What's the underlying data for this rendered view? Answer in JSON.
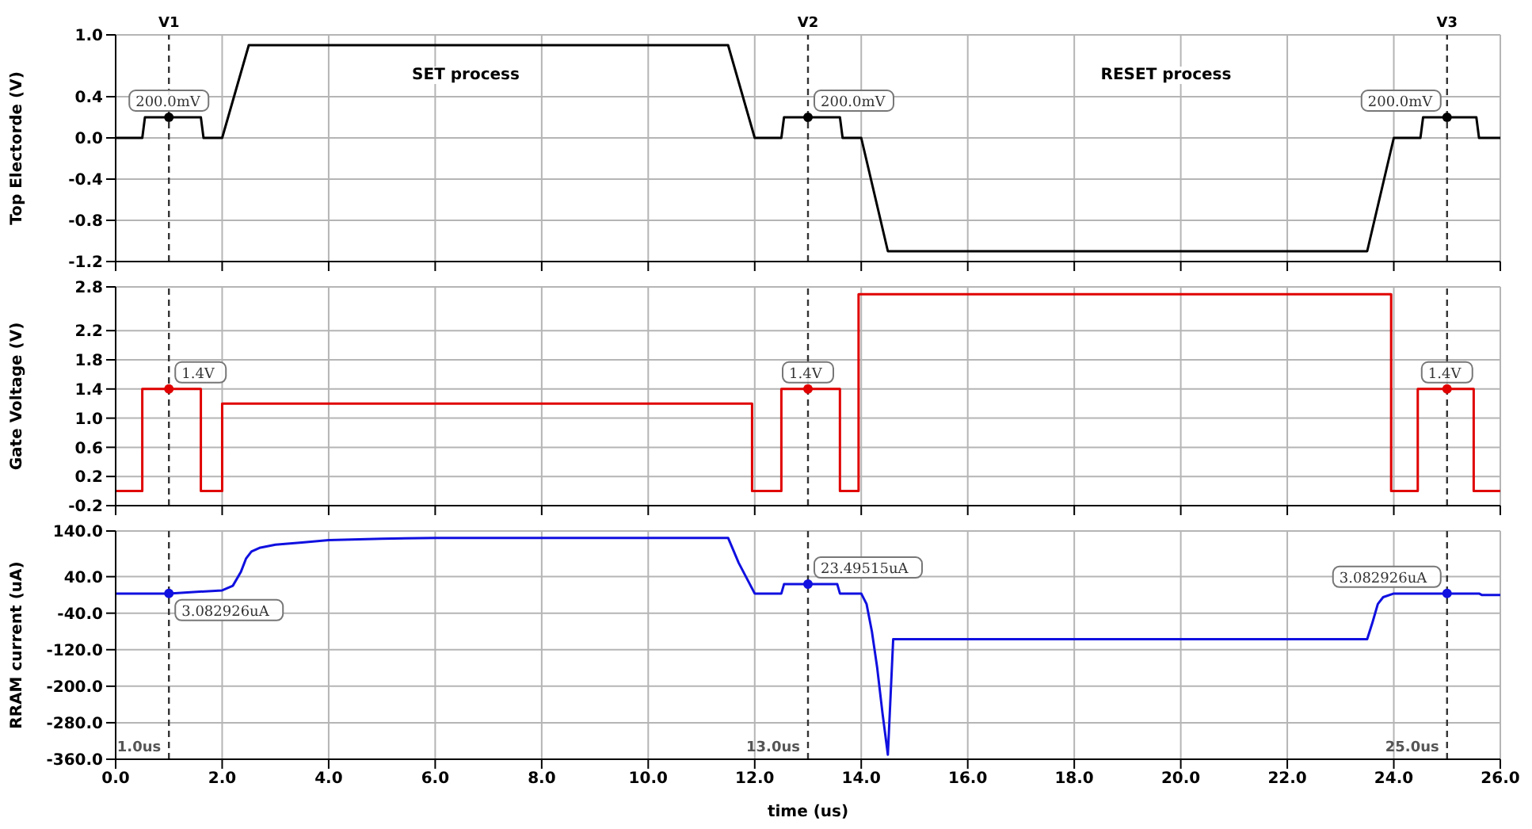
{
  "chart_data": [
    {
      "type": "line",
      "ylabel": "Top Electorde (V)",
      "xlim": [
        0,
        26
      ],
      "xticks": [
        0,
        2,
        4,
        6,
        8,
        10,
        12,
        14,
        16,
        18,
        20,
        22,
        24,
        26
      ],
      "ylim": [
        -1.2,
        1.0
      ],
      "yticks": [
        -1.2,
        -0.8,
        -0.4,
        {
          "value": 0,
          "label": "0.0"
        },
        0.4,
        {
          "value": 1,
          "label": "1.0"
        }
      ],
      "grid": true,
      "tick_labels": "y",
      "marker": "none",
      "line_style": "solid",
      "series": [
        {
          "color": "#000000",
          "x": [
            0,
            0.5,
            0.55,
            1.6,
            1.65,
            2.0,
            2.5,
            11.5,
            12.0,
            12.5,
            12.55,
            13.6,
            13.65,
            14.0,
            14.5,
            23.5,
            24.0,
            24.5,
            24.55,
            25.55,
            25.6,
            26
          ],
          "values": [
            0,
            0,
            0.2,
            0.2,
            0,
            0,
            0.9,
            0.9,
            0,
            0,
            0.2,
            0.2,
            0,
            0,
            -1.1,
            -1.1,
            0,
            0,
            0.2,
            0.2,
            0,
            0
          ]
        }
      ],
      "ref_lines": [
        {
          "axis": "x",
          "value": 1.0,
          "label": "V1",
          "color": "#333333",
          "line_style": "dashed"
        },
        {
          "axis": "x",
          "value": 13.0,
          "label": "V2",
          "color": "#333333",
          "line_style": "dashed"
        },
        {
          "axis": "x",
          "value": 25.0,
          "label": "V3",
          "color": "#333333",
          "line_style": "dashed"
        }
      ],
      "annotations": [
        "SET process",
        "RESET process",
        {
          "text": "200.0mV",
          "x": 1.0,
          "y": 0.2
        },
        {
          "text": "200.0mV",
          "x": 13.0,
          "y": 0.2
        },
        {
          "text": "200.0mV",
          "x": 25.0,
          "y": 0.2
        }
      ]
    },
    {
      "type": "line",
      "ylabel": "Gate Voltage (V)",
      "xlim": [
        0,
        26
      ],
      "xticks": [
        0,
        2,
        4,
        6,
        8,
        10,
        12,
        14,
        16,
        18,
        20,
        22,
        24,
        26
      ],
      "ylim": [
        -0.2,
        2.8
      ],
      "yticks": [
        -0.2,
        0.2,
        0.6,
        {
          "value": 1,
          "label": "1.0"
        },
        1.4,
        1.8,
        2.2,
        2.8
      ],
      "grid": true,
      "tick_labels": "y",
      "marker": "none",
      "line_style": "solid",
      "series": [
        {
          "color": "#e00000",
          "x": [
            0,
            0.5,
            0.5,
            1.6,
            1.6,
            2.0,
            2.0,
            11.95,
            11.95,
            12.5,
            12.5,
            13.6,
            13.6,
            13.95,
            13.95,
            23.95,
            23.95,
            24.45,
            24.45,
            25.5,
            25.5,
            26
          ],
          "values": [
            0,
            0,
            1.4,
            1.4,
            0,
            0,
            1.2,
            1.2,
            0,
            0,
            1.4,
            1.4,
            0,
            0,
            2.7,
            2.7,
            0,
            0,
            1.4,
            1.4,
            0,
            0
          ]
        }
      ],
      "ref_lines": [
        {
          "axis": "x",
          "value": 1.0,
          "label": null,
          "color": "#333333",
          "line_style": "dashed"
        },
        {
          "axis": "x",
          "value": 13.0,
          "label": null,
          "color": "#333333",
          "line_style": "dashed"
        },
        {
          "axis": "x",
          "value": 25.0,
          "label": null,
          "color": "#333333",
          "line_style": "dashed"
        }
      ],
      "annotations": [
        {
          "text": "1.4V",
          "x": 1.0,
          "y": 1.4
        },
        {
          "text": "1.4V",
          "x": 13.0,
          "y": 1.4
        },
        {
          "text": "1.4V",
          "x": 25.0,
          "y": 1.4
        }
      ]
    },
    {
      "type": "line",
      "xlabel": "time (us)",
      "ylabel": "RRAM current (uA)",
      "xlim": [
        0,
        26
      ],
      "xticks": [
        {
          "value": 0,
          "label": "0.0"
        },
        {
          "value": 2,
          "label": "2.0"
        },
        {
          "value": 4,
          "label": "4.0"
        },
        {
          "value": 6,
          "label": "6.0"
        },
        {
          "value": 8,
          "label": "8.0"
        },
        {
          "value": 10,
          "label": "10.0"
        },
        {
          "value": 12,
          "label": "12.0"
        },
        {
          "value": 14,
          "label": "14.0"
        },
        {
          "value": 16,
          "label": "16.0"
        },
        {
          "value": 18,
          "label": "18.0"
        },
        {
          "value": 20,
          "label": "20.0"
        },
        {
          "value": 22,
          "label": "22.0"
        },
        {
          "value": 24,
          "label": "24.0"
        },
        {
          "value": 26,
          "label": "26.0"
        }
      ],
      "ylim": [
        -360,
        140
      ],
      "yticks": [
        {
          "value": -360,
          "label": "-360.0"
        },
        {
          "value": -280,
          "label": "-280.0"
        },
        {
          "value": -200,
          "label": "-200.0"
        },
        {
          "value": -120,
          "label": "-120.0"
        },
        {
          "value": -40,
          "label": "-40.0"
        },
        {
          "value": 40,
          "label": "40.0"
        },
        {
          "value": 140,
          "label": "140.0"
        }
      ],
      "grid": true,
      "marker": "none",
      "line_style": "solid",
      "series": [
        {
          "color": "#1010e0",
          "x": [
            0,
            1.0,
            2.0,
            2.2,
            2.35,
            2.45,
            2.55,
            2.7,
            3.0,
            3.5,
            4.0,
            5.0,
            6.0,
            8.0,
            10.0,
            11.5,
            11.7,
            12.0,
            12.5,
            12.55,
            13.0,
            13.55,
            13.6,
            14.0,
            14.1,
            14.2,
            14.3,
            14.4,
            14.5,
            14.6,
            14.65,
            16,
            20,
            23.5,
            23.6,
            23.7,
            23.8,
            24.0,
            24.5,
            25.0,
            25.6,
            25.65,
            26.0
          ],
          "values": [
            3,
            3,
            10,
            20,
            50,
            80,
            95,
            103,
            110,
            115,
            120,
            123,
            125,
            125,
            125,
            125,
            70,
            3,
            3,
            23.5,
            23.5,
            23.5,
            3,
            3,
            -20,
            -80,
            -160,
            -260,
            -350,
            -97,
            -97,
            -97,
            -97,
            -97,
            -60,
            -20,
            -5,
            3,
            3,
            3,
            3,
            0,
            0
          ]
        }
      ],
      "ref_lines": [
        {
          "axis": "x",
          "value": 1.0,
          "label": "1.0us",
          "color": "#333333",
          "line_style": "dashed"
        },
        {
          "axis": "x",
          "value": 13.0,
          "label": "13.0us",
          "color": "#333333",
          "line_style": "dashed"
        },
        {
          "axis": "x",
          "value": 25.0,
          "label": "25.0us",
          "color": "#333333",
          "line_style": "dashed"
        }
      ],
      "annotations": [
        {
          "text": "3.082926uA",
          "x": 1.0,
          "y": 3.082926
        },
        {
          "text": "23.49515uA",
          "x": 13.0,
          "y": 23.49515
        },
        {
          "text": "3.082926uA",
          "x": 25.0,
          "y": 3.082926
        }
      ]
    }
  ]
}
